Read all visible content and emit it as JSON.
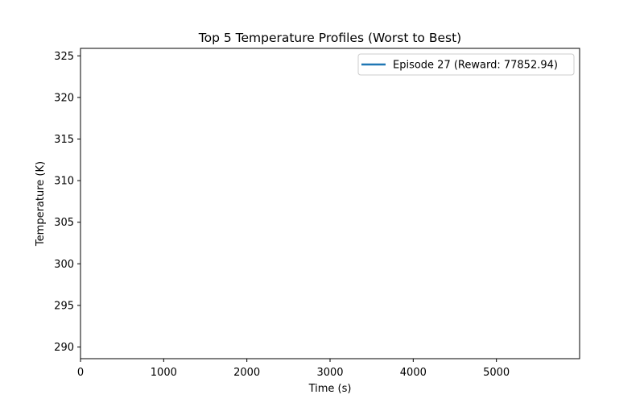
{
  "chart_data": {
    "type": "line",
    "title": "Top 5 Temperature Profiles (Worst to Best)",
    "xlabel": "Time (s)",
    "ylabel": "Temperature (K)",
    "xlim": [
      0,
      6000
    ],
    "ylim": [
      288.6,
      325.9
    ],
    "xticks": [
      0,
      1000,
      2000,
      3000,
      4000,
      5000
    ],
    "yticks": [
      290,
      295,
      300,
      305,
      310,
      315,
      320,
      325
    ],
    "grid": false,
    "legend_position": "upper right",
    "series": [
      {
        "name": "Episode 27 (Reward: 77852.94)",
        "color": "#1f77b4",
        "x": [],
        "y": []
      }
    ]
  }
}
